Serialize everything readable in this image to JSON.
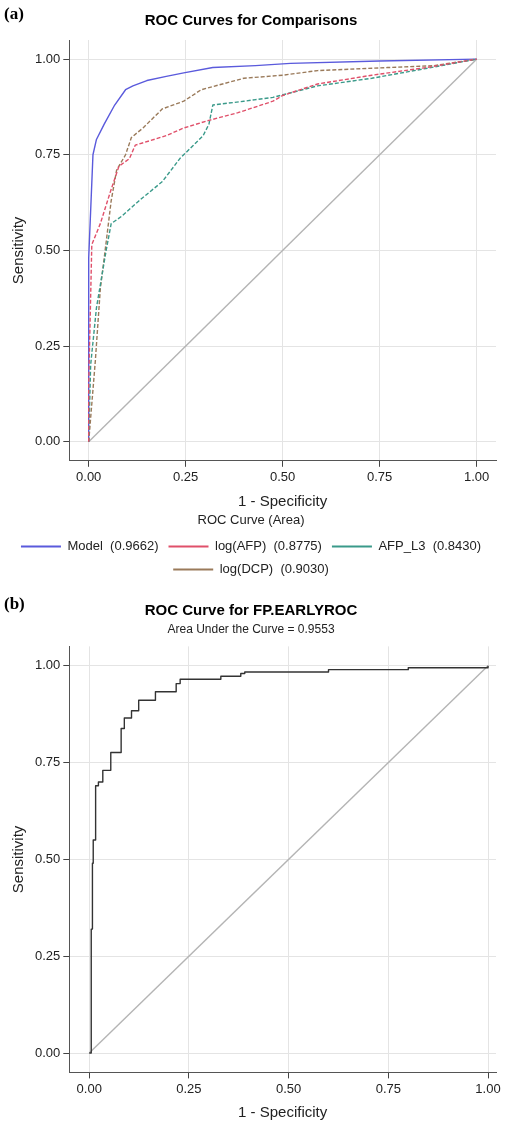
{
  "chart_data": [
    {
      "type": "line",
      "title": "ROC Curves for Comparisons",
      "xlabel": "1 - Specificity",
      "ylabel": "Sensitivity",
      "legend_title": "ROC Curve (Area)",
      "annotations": [
        "(a)"
      ],
      "xlim": [
        -0.05,
        1.05
      ],
      "ylim": [
        -0.05,
        1.05
      ],
      "xticks": [
        {
          "value": 0,
          "label": "0.00"
        },
        {
          "value": 0.25,
          "label": "0.25"
        },
        {
          "value": 0.5,
          "label": "0.50"
        },
        {
          "value": 0.75,
          "label": "0.75"
        },
        {
          "value": 1,
          "label": "1.00"
        }
      ],
      "yticks": [
        {
          "value": 0,
          "label": "0.00"
        },
        {
          "value": 0.25,
          "label": "0.25"
        },
        {
          "value": 0.5,
          "label": "0.50"
        },
        {
          "value": 0.75,
          "label": "0.75"
        },
        {
          "value": 1,
          "label": "1.00"
        }
      ],
      "grid": true,
      "legend": "bottom",
      "marker": "none",
      "series": [
        {
          "name": "Model  (0.9662)",
          "color": "#5a5adc",
          "line_style": "solid",
          "x": [
            0,
            0,
            0.011,
            0.02,
            0.04,
            0.067,
            0.095,
            0.114,
            0.15,
            0.2,
            0.245,
            0.32,
            0.43,
            0.52,
            0.75,
            1
          ],
          "values": [
            0,
            0.48,
            0.75,
            0.79,
            0.83,
            0.88,
            0.92,
            0.93,
            0.944,
            0.955,
            0.964,
            0.978,
            0.983,
            0.989,
            0.995,
            1
          ]
        },
        {
          "name": "log(AFP)  (0.8775)",
          "color": "#e0506a",
          "line_style": "dashed",
          "x": [
            0,
            0,
            0.008,
            0.03,
            0.058,
            0.078,
            0.105,
            0.12,
            0.2,
            0.245,
            0.31,
            0.385,
            0.475,
            0.5,
            0.59,
            0.73,
            0.87,
            1
          ],
          "values": [
            0,
            0.15,
            0.515,
            0.57,
            0.66,
            0.72,
            0.74,
            0.775,
            0.8,
            0.82,
            0.84,
            0.86,
            0.89,
            0.905,
            0.935,
            0.958,
            0.978,
            1
          ]
        },
        {
          "name": "AFP_L3  (0.8430)",
          "color": "#3a9a8a",
          "line_style": "dashed",
          "x": [
            0,
            0.005,
            0.02,
            0.045,
            0.058,
            0.086,
            0.13,
            0.19,
            0.235,
            0.27,
            0.295,
            0.31,
            0.32,
            0.4,
            0.475,
            0.59,
            0.73,
            0.91,
            1
          ],
          "values": [
            0,
            0.2,
            0.35,
            0.5,
            0.57,
            0.59,
            0.63,
            0.68,
            0.74,
            0.775,
            0.8,
            0.83,
            0.88,
            0.89,
            0.9,
            0.93,
            0.95,
            0.983,
            1
          ]
        },
        {
          "name": "log(DCP)  (0.9030)",
          "color": "#9a7a5a",
          "line_style": "dashed",
          "x": [
            0,
            0.017,
            0.03,
            0.04,
            0.058,
            0.072,
            0.095,
            0.11,
            0.14,
            0.19,
            0.245,
            0.29,
            0.345,
            0.4,
            0.5,
            0.59,
            0.77,
            0.89,
            1
          ],
          "values": [
            0,
            0.21,
            0.4,
            0.48,
            0.63,
            0.71,
            0.75,
            0.795,
            0.82,
            0.87,
            0.89,
            0.92,
            0.935,
            0.95,
            0.958,
            0.97,
            0.978,
            0.983,
            1
          ]
        },
        {
          "color": "#b4b4b4",
          "line_style": "solid",
          "x": [
            0,
            1
          ],
          "values": [
            0,
            1
          ]
        }
      ]
    },
    {
      "type": "step",
      "title": "ROC Curve for FP.EARLYROC",
      "subtitle": "Area Under the Curve = 0.9553",
      "xlabel": "1 - Specificity",
      "ylabel": "Sensitivity",
      "annotations": [
        "(b)"
      ],
      "xlim": [
        -0.05,
        1.02
      ],
      "ylim": [
        -0.05,
        1.05
      ],
      "xticks": [
        {
          "value": 0,
          "label": "0.00"
        },
        {
          "value": 0.25,
          "label": "0.25"
        },
        {
          "value": 0.5,
          "label": "0.50"
        },
        {
          "value": 0.75,
          "label": "0.75"
        },
        {
          "value": 1,
          "label": "1.00"
        }
      ],
      "yticks": [
        {
          "value": 0,
          "label": "0.00"
        },
        {
          "value": 0.25,
          "label": "0.25"
        },
        {
          "value": 0.5,
          "label": "0.50"
        },
        {
          "value": 0.75,
          "label": "0.75"
        },
        {
          "value": 1,
          "label": "1.00"
        }
      ],
      "grid": true,
      "marker": "none",
      "series": [
        {
          "color": "#333333",
          "line_style": "solid",
          "x": [
            0,
            0.005,
            0.008,
            0.01,
            0.016,
            0.023,
            0.034,
            0.036,
            0.054,
            0.08,
            0.088,
            0.106,
            0.124,
            0.166,
            0.218,
            0.228,
            0.32,
            0.33,
            0.38,
            0.39,
            0.6,
            0.8,
            1
          ],
          "values": [
            0,
            0.32,
            0.49,
            0.55,
            0.69,
            0.7,
            0.73,
            0.73,
            0.776,
            0.838,
            0.865,
            0.884,
            0.911,
            0.933,
            0.954,
            0.965,
            0.965,
            0.973,
            0.98,
            0.984,
            0.99,
            0.995,
            1
          ]
        },
        {
          "type": "line",
          "color": "#b4b4b4",
          "line_style": "solid",
          "x": [
            0,
            1
          ],
          "values": [
            0,
            1
          ]
        }
      ]
    }
  ]
}
